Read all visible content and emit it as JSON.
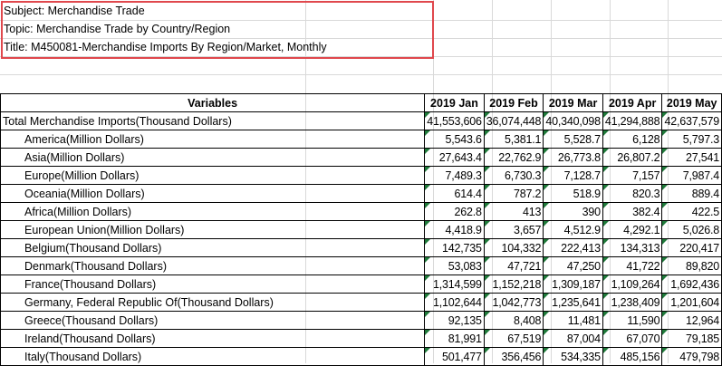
{
  "meta": {
    "subject": "Subject: Merchandise Trade",
    "topic": "Topic: Merchandise Trade by Country/Region",
    "title": "Title: M450081-Merchandise Imports By Region/Market, Monthly"
  },
  "table": {
    "header_variables": "Variables",
    "months": [
      "2019 Jan",
      "2019 Feb",
      "2019 Mar",
      "2019 Apr",
      "2019 May"
    ],
    "rows": [
      {
        "label": "Total Merchandise Imports(Thousand Dollars)",
        "indent": false,
        "values": [
          "41,553,606",
          "36,074,448",
          "40,340,098",
          "41,294,888",
          "42,637,579"
        ]
      },
      {
        "label": "America(Million Dollars)",
        "indent": true,
        "values": [
          "5,543.6",
          "5,381.1",
          "5,528.7",
          "6,128",
          "5,797.3"
        ]
      },
      {
        "label": "Asia(Million Dollars)",
        "indent": true,
        "values": [
          "27,643.4",
          "22,762.9",
          "26,773.8",
          "26,807.2",
          "27,541"
        ]
      },
      {
        "label": "Europe(Million Dollars)",
        "indent": true,
        "values": [
          "7,489.3",
          "6,730.3",
          "7,128.7",
          "7,157",
          "7,987.4"
        ]
      },
      {
        "label": "Oceania(Million Dollars)",
        "indent": true,
        "values": [
          "614.4",
          "787.2",
          "518.9",
          "820.3",
          "889.4"
        ]
      },
      {
        "label": "Africa(Million Dollars)",
        "indent": true,
        "values": [
          "262.8",
          "413",
          "390",
          "382.4",
          "422.5"
        ]
      },
      {
        "label": "European Union(Million Dollars)",
        "indent": true,
        "values": [
          "4,418.9",
          "3,657",
          "4,512.9",
          "4,292.1",
          "5,026.8"
        ]
      },
      {
        "label": "Belgium(Thousand Dollars)",
        "indent": true,
        "values": [
          "142,735",
          "104,332",
          "222,413",
          "134,313",
          "220,417"
        ]
      },
      {
        "label": "Denmark(Thousand Dollars)",
        "indent": true,
        "values": [
          "53,083",
          "47,721",
          "47,250",
          "41,722",
          "89,820"
        ]
      },
      {
        "label": "France(Thousand Dollars)",
        "indent": true,
        "values": [
          "1,314,599",
          "1,152,218",
          "1,309,187",
          "1,109,264",
          "1,692,436"
        ]
      },
      {
        "label": "Germany, Federal Republic Of(Thousand Dollars)",
        "indent": true,
        "values": [
          "1,102,644",
          "1,042,773",
          "1,235,641",
          "1,238,409",
          "1,201,604"
        ]
      },
      {
        "label": "Greece(Thousand Dollars)",
        "indent": true,
        "values": [
          "92,135",
          "8,408",
          "11,481",
          "11,590",
          "12,964"
        ]
      },
      {
        "label": "Ireland(Thousand Dollars)",
        "indent": true,
        "values": [
          "81,991",
          "67,519",
          "87,004",
          "67,070",
          "79,185"
        ]
      },
      {
        "label": "Italy(Thousand Dollars)",
        "indent": true,
        "values": [
          "501,477",
          "356,456",
          "534,335",
          "485,156",
          "479,798"
        ]
      }
    ]
  },
  "colors": {
    "highlight_border": "#e0484d",
    "gridline": "#d9d9d9",
    "error_marker": "#1f7a3a"
  }
}
